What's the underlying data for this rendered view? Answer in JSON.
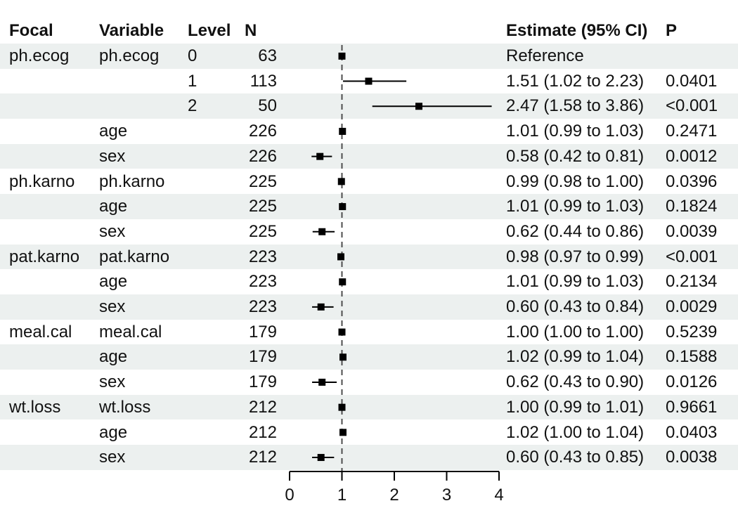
{
  "colors": {
    "stripe": "#ecf0ef",
    "text": "#111111",
    "marker": "#000000",
    "ci_line": "#000000",
    "reference_line": "#4d4d4d",
    "axis": "#000000"
  },
  "table": {
    "headers": {
      "focal": "Focal",
      "variable": "Variable",
      "level": "Level",
      "n": "N",
      "estimate": "Estimate (95% CI)",
      "p": "P"
    }
  },
  "chart_data": {
    "type": "forest",
    "x_axis": {
      "xlim": [
        0,
        4
      ],
      "ticks": [
        0,
        1,
        2,
        3,
        4
      ],
      "reference_line": 1
    },
    "rows": [
      {
        "focal": "ph.ecog",
        "variable": "ph.ecog",
        "level": "0",
        "n": "63",
        "estimate_label": "Reference",
        "p": "",
        "est": 1.0,
        "lo": null,
        "hi": null,
        "reference": true,
        "shaded": true
      },
      {
        "focal": "",
        "variable": "",
        "level": "1",
        "n": "113",
        "estimate_label": "1.51 (1.02 to 2.23)",
        "p": "0.0401",
        "est": 1.51,
        "lo": 1.02,
        "hi": 2.23,
        "reference": false,
        "shaded": false
      },
      {
        "focal": "",
        "variable": "",
        "level": "2",
        "n": "50",
        "estimate_label": "2.47 (1.58 to 3.86)",
        "p": "<0.001",
        "est": 2.47,
        "lo": 1.58,
        "hi": 3.86,
        "reference": false,
        "shaded": true
      },
      {
        "focal": "",
        "variable": "age",
        "level": "",
        "n": "226",
        "estimate_label": "1.01 (0.99 to 1.03)",
        "p": "0.2471",
        "est": 1.01,
        "lo": 0.99,
        "hi": 1.03,
        "reference": false,
        "shaded": false
      },
      {
        "focal": "",
        "variable": "sex",
        "level": "",
        "n": "226",
        "estimate_label": "0.58 (0.42 to 0.81)",
        "p": "0.0012",
        "est": 0.58,
        "lo": 0.42,
        "hi": 0.81,
        "reference": false,
        "shaded": true
      },
      {
        "focal": "ph.karno",
        "variable": "ph.karno",
        "level": "",
        "n": "225",
        "estimate_label": "0.99 (0.98 to 1.00)",
        "p": "0.0396",
        "est": 0.99,
        "lo": 0.98,
        "hi": 1.0,
        "reference": false,
        "shaded": false
      },
      {
        "focal": "",
        "variable": "age",
        "level": "",
        "n": "225",
        "estimate_label": "1.01 (0.99 to 1.03)",
        "p": "0.1824",
        "est": 1.01,
        "lo": 0.99,
        "hi": 1.03,
        "reference": false,
        "shaded": true
      },
      {
        "focal": "",
        "variable": "sex",
        "level": "",
        "n": "225",
        "estimate_label": "0.62 (0.44 to 0.86)",
        "p": "0.0039",
        "est": 0.62,
        "lo": 0.44,
        "hi": 0.86,
        "reference": false,
        "shaded": false
      },
      {
        "focal": "pat.karno",
        "variable": "pat.karno",
        "level": "",
        "n": "223",
        "estimate_label": "0.98 (0.97 to 0.99)",
        "p": "<0.001",
        "est": 0.98,
        "lo": 0.97,
        "hi": 0.99,
        "reference": false,
        "shaded": true
      },
      {
        "focal": "",
        "variable": "age",
        "level": "",
        "n": "223",
        "estimate_label": "1.01 (0.99 to 1.03)",
        "p": "0.2134",
        "est": 1.01,
        "lo": 0.99,
        "hi": 1.03,
        "reference": false,
        "shaded": false
      },
      {
        "focal": "",
        "variable": "sex",
        "level": "",
        "n": "223",
        "estimate_label": "0.60 (0.43 to 0.84)",
        "p": "0.0029",
        "est": 0.6,
        "lo": 0.43,
        "hi": 0.84,
        "reference": false,
        "shaded": true
      },
      {
        "focal": "meal.cal",
        "variable": "meal.cal",
        "level": "",
        "n": "179",
        "estimate_label": "1.00 (1.00 to 1.00)",
        "p": "0.5239",
        "est": 1.0,
        "lo": 1.0,
        "hi": 1.0,
        "reference": false,
        "shaded": false
      },
      {
        "focal": "",
        "variable": "age",
        "level": "",
        "n": "179",
        "estimate_label": "1.02 (0.99 to 1.04)",
        "p": "0.1588",
        "est": 1.02,
        "lo": 0.99,
        "hi": 1.04,
        "reference": false,
        "shaded": true
      },
      {
        "focal": "",
        "variable": "sex",
        "level": "",
        "n": "179",
        "estimate_label": "0.62 (0.43 to 0.90)",
        "p": "0.0126",
        "est": 0.62,
        "lo": 0.43,
        "hi": 0.9,
        "reference": false,
        "shaded": false
      },
      {
        "focal": "wt.loss",
        "variable": "wt.loss",
        "level": "",
        "n": "212",
        "estimate_label": "1.00 (0.99 to 1.01)",
        "p": "0.9661",
        "est": 1.0,
        "lo": 0.99,
        "hi": 1.01,
        "reference": false,
        "shaded": true
      },
      {
        "focal": "",
        "variable": "age",
        "level": "",
        "n": "212",
        "estimate_label": "1.02 (1.00 to 1.04)",
        "p": "0.0403",
        "est": 1.02,
        "lo": 1.0,
        "hi": 1.04,
        "reference": false,
        "shaded": false
      },
      {
        "focal": "",
        "variable": "sex",
        "level": "",
        "n": "212",
        "estimate_label": "0.60 (0.43 to 0.85)",
        "p": "0.0038",
        "est": 0.6,
        "lo": 0.43,
        "hi": 0.85,
        "reference": false,
        "shaded": true
      }
    ]
  }
}
